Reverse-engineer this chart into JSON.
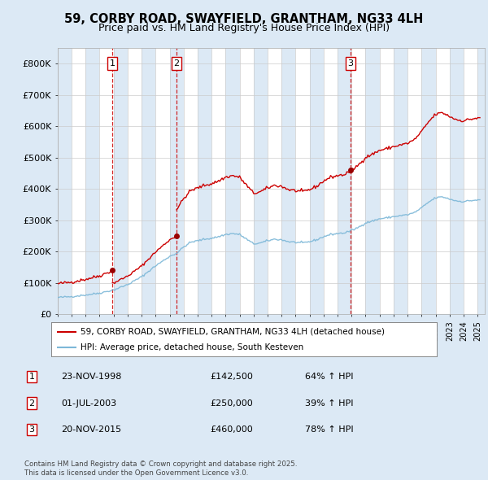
{
  "title_line1": "59, CORBY ROAD, SWAYFIELD, GRANTHAM, NG33 4LH",
  "title_line2": "Price paid vs. HM Land Registry's House Price Index (HPI)",
  "legend_line1": "59, CORBY ROAD, SWAYFIELD, GRANTHAM, NG33 4LH (detached house)",
  "legend_line2": "HPI: Average price, detached house, South Kesteven",
  "footnote": "Contains HM Land Registry data © Crown copyright and database right 2025.\nThis data is licensed under the Open Government Licence v3.0.",
  "sale_years_dec": [
    1998.9167,
    2003.5,
    2015.9167
  ],
  "sale_prices": [
    142500,
    250000,
    460000
  ],
  "sale_labels": [
    "1",
    "2",
    "3"
  ],
  "sale_info": [
    "23-NOV-1998",
    "01-JUL-2003",
    "20-NOV-2015"
  ],
  "sale_amounts": [
    "£142,500",
    "£250,000",
    "£460,000"
  ],
  "sale_pct": [
    "64% ↑ HPI",
    "39% ↑ HPI",
    "78% ↑ HPI"
  ],
  "hpi_color": "#7db8d8",
  "price_color": "#cc0000",
  "dashed_color": "#cc0000",
  "background_color": "#dce9f5",
  "plot_bg_color": "#ffffff",
  "strip_color": "#dce9f5",
  "ylim": [
    0,
    850000
  ],
  "yticks": [
    0,
    100000,
    200000,
    300000,
    400000,
    500000,
    600000,
    700000,
    800000
  ],
  "ytick_labels": [
    "£0",
    "£100K",
    "£200K",
    "£300K",
    "£400K",
    "£500K",
    "£600K",
    "£700K",
    "£800K"
  ],
  "xmin": 1995,
  "xmax": 2025.5
}
